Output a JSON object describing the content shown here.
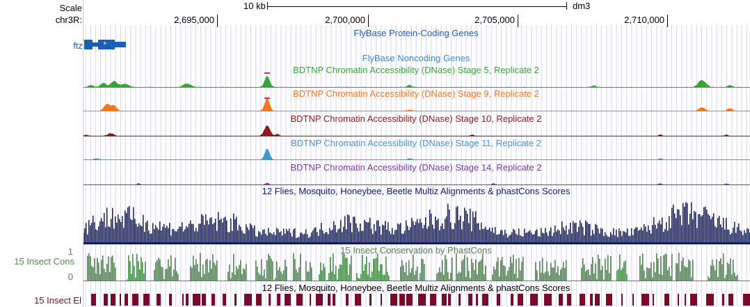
{
  "header": {
    "scale_label": "Scale",
    "chrom_label": "chr3R:",
    "scale_bar_label": "10 kb",
    "assembly": "dm3",
    "ticks": [
      {
        "label": "2,695,000",
        "value": 2695000
      },
      {
        "label": "2,700,000",
        "value": 2700000
      },
      {
        "label": "2,705,000",
        "value": 2705000
      },
      {
        "label": "2,710,000",
        "value": 2710000
      }
    ]
  },
  "colors": {
    "coding_genes": "#1a5fb4",
    "noncoding_title": "#2a8fd4",
    "stage5": "#3aa43a",
    "stage9": "#f07820",
    "stage10": "#8b1a1a",
    "stage11": "#3c9ad0",
    "stage14": "#7a3aa0",
    "multiz": "#0e1a6a",
    "cons": "#4a8a4a",
    "elements": "#7a0a2a",
    "clip_peak": "#e0207a",
    "grid": "#d4d4f4"
  },
  "tracks": {
    "coding_title": "FlyBase Protein-Coding Genes",
    "gene_label": "ftz",
    "noncoding_title": "FlyBase Noncoding Genes",
    "stage5_title": "BDTNP Chromatin Accessibility (DNase) Stage 5, Replicate 2",
    "stage9_title": "BDTNP Chromatin Accessibility (DNase) Stage 9, Replicate 2",
    "stage10_title": "BDTNP Chromatin Accessibility (DNase) Stage 10, Replicate 2",
    "stage11_title": "BDTNP Chromatin Accessibility (DNase) Stage 11, Replicate 2",
    "stage14_title": "BDTNP Chromatin Accessibility (DNase) Stage 14, Replicate 2",
    "multiz_title": "12 Flies, Mosquito, Honeybee, Beetle Multiz Alignments & phastCons Scores",
    "cons_title": "15 Insect Conservation by PhastCons",
    "cons_left_label": "15 Insect Cons",
    "cons_max": "1",
    "cons_min": "0",
    "el_title": "12 Flies, Mosquito, Honeybee, Beetle Multiz Alignments & phastCons Scores",
    "el_left_label": "15 Insect El"
  }
}
